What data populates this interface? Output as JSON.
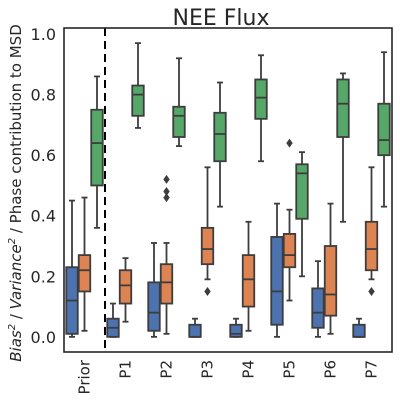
{
  "chart_data": {
    "type": "box",
    "title": "NEE Flux",
    "ylabel": "Bias² / Variance² / Phase contribution to MSD",
    "ylabel_parts": {
      "t1": "Bias",
      "s1": "2",
      "t2": " / ",
      "t3": "Variance",
      "s2": "2",
      "t4": " / Phase contribution to MSD"
    },
    "xlabel": "",
    "ylim": [
      -0.05,
      1.02
    ],
    "yticks": [
      0.0,
      0.2,
      0.4,
      0.6,
      0.8,
      1.0
    ],
    "ytick_labels": [
      "0.0",
      "0.2",
      "0.4",
      "0.6",
      "0.8",
      "1.0"
    ],
    "grid": false,
    "legend": "none",
    "categories": [
      "Prior",
      "P1",
      "P2",
      "P3",
      "P4",
      "P5",
      "P6",
      "P7"
    ],
    "divider_after": "Prior",
    "series": [
      {
        "color": "#4c72b0",
        "boxes": [
          {
            "whislo": 0.0,
            "q1": 0.01,
            "med": 0.12,
            "q3": 0.23,
            "whishi": 0.45,
            "fliers": []
          },
          {
            "whislo": 0.0,
            "q1": 0.0,
            "med": 0.03,
            "q3": 0.06,
            "whishi": 0.11,
            "fliers": []
          },
          {
            "whislo": 0.0,
            "q1": 0.02,
            "med": 0.08,
            "q3": 0.18,
            "whishi": 0.31,
            "fliers": []
          },
          {
            "whislo": 0.0,
            "q1": 0.0,
            "med": 0.0,
            "q3": 0.04,
            "whishi": 0.06,
            "fliers": []
          },
          {
            "whislo": 0.0,
            "q1": 0.0,
            "med": 0.01,
            "q3": 0.04,
            "whishi": 0.06,
            "fliers": []
          },
          {
            "whislo": 0.0,
            "q1": 0.04,
            "med": 0.15,
            "q3": 0.33,
            "whishi": 0.44,
            "fliers": []
          },
          {
            "whislo": 0.0,
            "q1": 0.03,
            "med": 0.08,
            "q3": 0.16,
            "whishi": 0.25,
            "fliers": []
          },
          {
            "whislo": 0.0,
            "q1": 0.0,
            "med": 0.0,
            "q3": 0.04,
            "whishi": 0.06,
            "fliers": []
          }
        ]
      },
      {
        "color": "#dd8452",
        "boxes": [
          {
            "whislo": 0.02,
            "q1": 0.15,
            "med": 0.22,
            "q3": 0.27,
            "whishi": 0.46,
            "fliers": []
          },
          {
            "whislo": 0.05,
            "q1": 0.11,
            "med": 0.17,
            "q3": 0.22,
            "whishi": 0.26,
            "fliers": []
          },
          {
            "whislo": 0.01,
            "q1": 0.11,
            "med": 0.18,
            "q3": 0.24,
            "whishi": 0.31,
            "fliers": [
              0.52,
              0.48,
              0.46
            ]
          },
          {
            "whislo": 0.19,
            "q1": 0.24,
            "med": 0.29,
            "q3": 0.36,
            "whishi": 0.56,
            "fliers": [
              0.15
            ]
          },
          {
            "whislo": 0.02,
            "q1": 0.1,
            "med": 0.19,
            "q3": 0.27,
            "whishi": 0.38,
            "fliers": []
          },
          {
            "whislo": 0.12,
            "q1": 0.23,
            "med": 0.27,
            "q3": 0.34,
            "whishi": 0.42,
            "fliers": [
              0.64
            ]
          },
          {
            "whislo": 0.01,
            "q1": 0.07,
            "med": 0.14,
            "q3": 0.3,
            "whishi": 0.44,
            "fliers": []
          },
          {
            "whislo": 0.19,
            "q1": 0.22,
            "med": 0.29,
            "q3": 0.38,
            "whishi": 0.56,
            "fliers": [
              0.15
            ]
          }
        ]
      },
      {
        "color": "#55a868",
        "boxes": [
          {
            "whislo": 0.36,
            "q1": 0.5,
            "med": 0.64,
            "q3": 0.75,
            "whishi": 0.86,
            "fliers": []
          },
          {
            "whislo": 0.69,
            "q1": 0.73,
            "med": 0.8,
            "q3": 0.83,
            "whishi": 0.97,
            "fliers": []
          },
          {
            "whislo": 0.63,
            "q1": 0.66,
            "med": 0.73,
            "q3": 0.76,
            "whishi": 0.92,
            "fliers": []
          },
          {
            "whislo": 0.43,
            "q1": 0.58,
            "med": 0.67,
            "q3": 0.74,
            "whishi": 0.84,
            "fliers": []
          },
          {
            "whislo": 0.58,
            "q1": 0.72,
            "med": 0.79,
            "q3": 0.85,
            "whishi": 0.93,
            "fliers": []
          },
          {
            "whislo": 0.2,
            "q1": 0.39,
            "med": 0.54,
            "q3": 0.57,
            "whishi": 0.61,
            "fliers": []
          },
          {
            "whislo": 0.38,
            "q1": 0.66,
            "med": 0.77,
            "q3": 0.85,
            "whishi": 0.87,
            "fliers": []
          },
          {
            "whislo": 0.43,
            "q1": 0.6,
            "med": 0.65,
            "q3": 0.77,
            "whishi": 0.94,
            "fliers": []
          }
        ]
      }
    ]
  }
}
